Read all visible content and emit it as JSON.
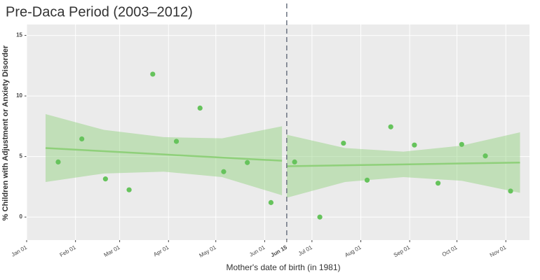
{
  "chart_data": {
    "type": "scatter",
    "title": "Pre-Daca Period  (2003–2012)",
    "xlabel": "Mother's date of birth (in 1981)",
    "ylabel": "% Children with Adjustment or Anxiety Disorder",
    "xlim": [
      1,
      320
    ],
    "ylim": [
      -1.9,
      15.9
    ],
    "xticks": [
      {
        "value": 1,
        "label": "Jan 01"
      },
      {
        "value": 32,
        "label": "Feb 01"
      },
      {
        "value": 60,
        "label": "Mar 01"
      },
      {
        "value": 91,
        "label": "Apr 01"
      },
      {
        "value": 121,
        "label": "May 01"
      },
      {
        "value": 152,
        "label": "Jun 01"
      },
      {
        "value": 166,
        "label": "Jun 15"
      },
      {
        "value": 182,
        "label": "Jul 01"
      },
      {
        "value": 213,
        "label": "Aug 01"
      },
      {
        "value": 244,
        "label": "Sep 01"
      },
      {
        "value": 274,
        "label": "Oct 01"
      },
      {
        "value": 305,
        "label": "Nov 01"
      }
    ],
    "yticks": [
      0,
      5,
      10,
      15
    ],
    "grid": true,
    "vline": 166,
    "series": [
      {
        "color": "#66c35c",
        "x": [
          21,
          36,
          51,
          66,
          81,
          96,
          111,
          126,
          141,
          156,
          171,
          187,
          202,
          217,
          232,
          247,
          262,
          277,
          292,
          308
        ],
        "values": [
          4.55,
          6.45,
          3.15,
          2.25,
          11.8,
          6.25,
          9.0,
          3.75,
          4.5,
          1.2,
          4.55,
          0.0,
          6.1,
          3.05,
          7.45,
          5.95,
          2.8,
          6.0,
          5.05,
          2.15
        ]
      }
    ],
    "fits": [
      {
        "color": "#8fd07a",
        "x": [
          13,
          50,
          88,
          125,
          163
        ],
        "values": [
          5.7,
          5.44,
          5.17,
          4.91,
          4.65
        ],
        "lower": [
          2.9,
          3.6,
          3.75,
          3.3,
          1.8
        ],
        "upper": [
          8.5,
          7.2,
          6.6,
          6.5,
          7.5
        ]
      },
      {
        "color": "#8fd07a",
        "x": [
          166,
          203,
          240,
          277,
          314
        ],
        "values": [
          4.2,
          4.28,
          4.35,
          4.43,
          4.5
        ],
        "lower": [
          1.6,
          2.9,
          3.3,
          3.0,
          2.0
        ],
        "upper": [
          6.8,
          5.7,
          5.4,
          5.9,
          7.0
        ]
      }
    ]
  }
}
